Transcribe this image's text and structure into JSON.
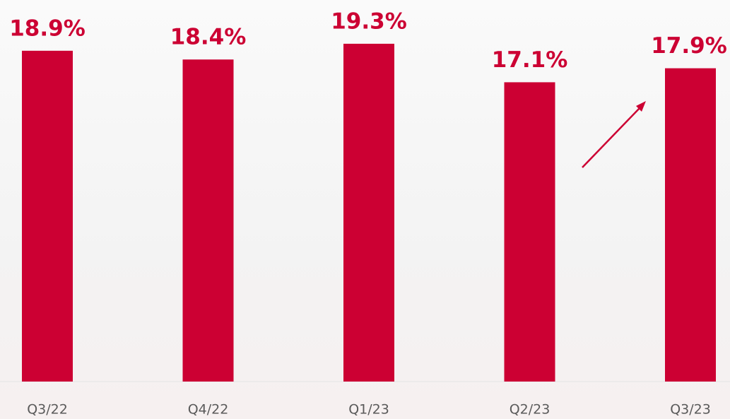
{
  "chart_data": {
    "type": "bar",
    "categories": [
      "Q3/22",
      "Q4/22",
      "Q1/23",
      "Q2/23",
      "Q3/23"
    ],
    "values": [
      18.9,
      18.4,
      19.3,
      17.1,
      17.9
    ],
    "value_labels": [
      "18.9%",
      "18.4%",
      "19.3%",
      "17.1%",
      "17.9%"
    ],
    "color": "#cc0033",
    "ylim": [
      0,
      21.8
    ]
  }
}
